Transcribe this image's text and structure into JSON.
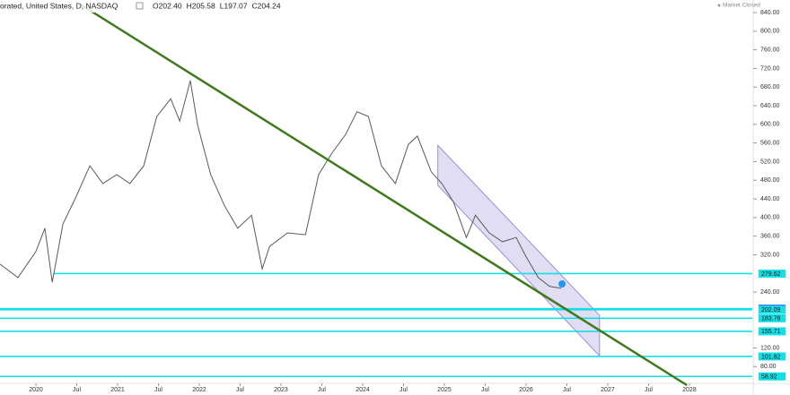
{
  "chart_data": {
    "type": "line",
    "title": "orated, United States, D, NASDAQ",
    "ohlc": [
      "O202.40",
      "H205.58",
      "L197.07",
      "C204.24"
    ],
    "status": "Market Closed",
    "xlim": [
      2019.56,
      2028.77
    ],
    "ylim": [
      44,
      867
    ],
    "xticks": [
      2020,
      {
        "value": 2020.5,
        "label": "Jul"
      },
      2021,
      {
        "value": 2021.5,
        "label": "Jul"
      },
      2022,
      {
        "value": 2022.5,
        "label": "Jul"
      },
      2023,
      {
        "value": 2023.5,
        "label": "Jul"
      },
      2024,
      {
        "value": 2024.5,
        "label": "Jul"
      },
      2025,
      {
        "value": 2025.5,
        "label": "Jul"
      },
      2026,
      {
        "value": 2026.5,
        "label": "Jul"
      },
      2027,
      {
        "value": 2027.5,
        "label": "Jul"
      },
      2028
    ],
    "yticks": [
      {
        "value": 840,
        "label": "840.00"
      },
      {
        "value": 800,
        "label": "800.00"
      },
      {
        "value": 760,
        "label": "760.00"
      },
      {
        "value": 720,
        "label": "720.00"
      },
      {
        "value": 680,
        "label": "680.00"
      },
      {
        "value": 640,
        "label": "640.00"
      },
      {
        "value": 600,
        "label": "600.00"
      },
      {
        "value": 560,
        "label": "560.00"
      },
      {
        "value": 520,
        "label": "520.00"
      },
      {
        "value": 480,
        "label": "480.00"
      },
      {
        "value": 440,
        "label": "440.00"
      },
      {
        "value": 400,
        "label": "400.00"
      },
      {
        "value": 360,
        "label": "360.00"
      },
      {
        "value": 320,
        "label": "320.00"
      },
      {
        "value": 240,
        "label": "240.00"
      },
      {
        "value": 120,
        "label": "120.00"
      },
      {
        "value": 80,
        "label": "80.00"
      }
    ],
    "grid": false,
    "series": [
      {
        "color": "#5a5a5a",
        "x": [
          2019.56,
          2019.78,
          2020.0,
          2020.11,
          2020.2,
          2020.33,
          2020.49,
          2020.66,
          2020.82,
          2020.99,
          2021.15,
          2021.32,
          2021.48,
          2021.65,
          2021.76,
          2021.89,
          2021.98,
          2022.14,
          2022.31,
          2022.47,
          2022.64,
          2022.77,
          2022.86,
          2023.08,
          2023.3,
          2023.46,
          2023.63,
          2023.79,
          2023.93,
          2024.07,
          2024.23,
          2024.4,
          2024.56,
          2024.67,
          2024.84,
          2024.97,
          2025.11,
          2025.27,
          2025.38,
          2025.55,
          2025.71,
          2025.88,
          2025.99,
          2026.15,
          2026.29,
          2026.43
        ],
        "values": [
          300,
          271,
          327,
          377,
          261,
          386,
          444,
          511,
          473,
          492,
          473,
          511,
          617,
          655,
          607,
          694,
          598,
          492,
          425,
          377,
          405,
          290,
          338,
          367,
          363,
          492,
          540,
          578,
          627,
          617,
          511,
          473,
          557,
          575,
          498,
          473,
          434,
          357,
          405,
          367,
          348,
          357,
          319,
          271,
          252,
          248
        ]
      }
    ],
    "trendline": {
      "color": "#3f7a1c",
      "x": [
        2020.55,
        2027.97
      ],
      "values": [
        857,
        40
      ]
    },
    "channel": {
      "color": "#9b8fd6",
      "x": [
        2024.92,
        2026.9
      ],
      "upper": [
        555,
        190
      ],
      "lower": [
        469,
        103
      ]
    },
    "levels_color": "#12e0e6",
    "levels": [
      {
        "value": 279.62,
        "x": 2020.22
      },
      {
        "value": 204.24,
        "label_color": "#2962ff"
      },
      {
        "value": 202.09
      },
      {
        "value": 183.76
      },
      {
        "value": 155.71
      },
      {
        "value": 101.82
      },
      {
        "value": 58.92
      }
    ]
  }
}
